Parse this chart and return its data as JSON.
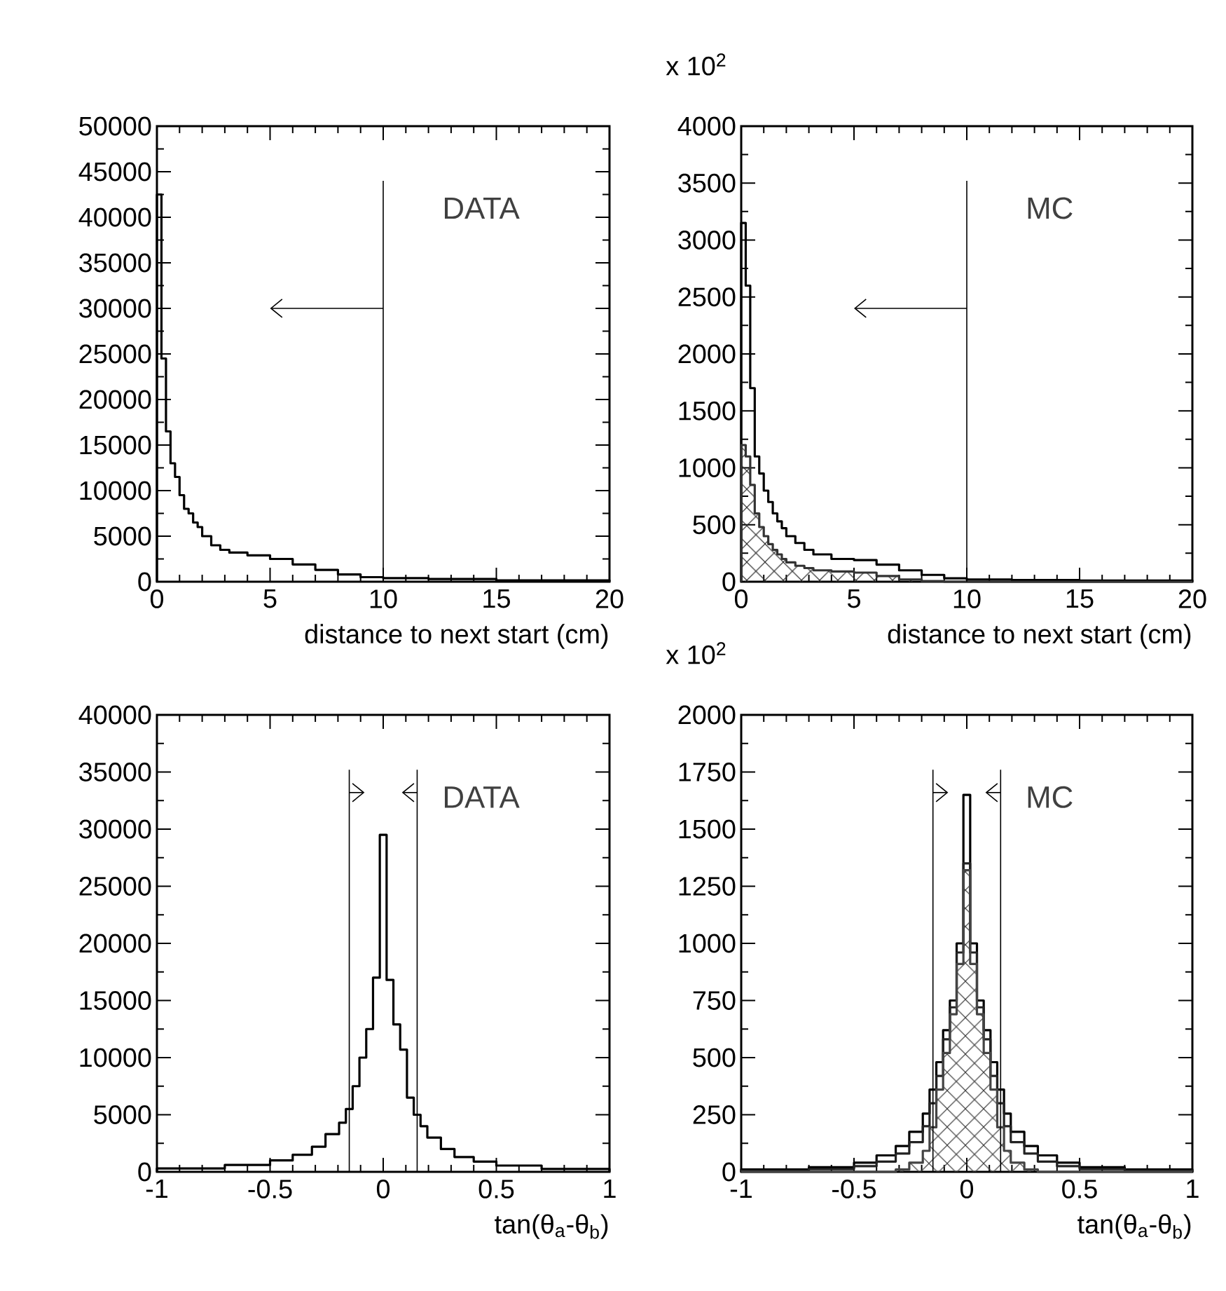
{
  "chart_data": [
    {
      "type": "histogram",
      "bins": [
        0,
        0.2,
        0.4,
        0.6,
        0.8,
        1.0,
        1.2,
        1.4,
        1.6,
        1.8,
        2,
        2.4,
        2.8,
        3.2,
        4,
        5,
        6,
        7,
        8,
        9,
        10,
        12,
        15,
        20
      ],
      "values": [
        42500,
        24500,
        16500,
        13000,
        11500,
        9500,
        8000,
        7500,
        6500,
        6000,
        5000,
        4000,
        3500,
        3200,
        2900,
        2500,
        1900,
        1300,
        800,
        500,
        400,
        300,
        150
      ],
      "color": "#000000",
      "xlim": [
        0,
        20
      ],
      "ylim": [
        0,
        50000
      ],
      "xticks": [
        0,
        5,
        10,
        15,
        20
      ],
      "yticks": [
        0,
        5000,
        10000,
        15000,
        20000,
        25000,
        30000,
        35000,
        40000,
        45000,
        50000
      ],
      "xlabel": "distance to next start (cm)",
      "annotations": [
        "DATA"
      ],
      "ref_lines": [
        {
          "axis": "x",
          "value": 10
        }
      ]
    },
    {
      "type": "histogram",
      "bins": [
        0,
        0.2,
        0.4,
        0.6,
        0.8,
        1.0,
        1.2,
        1.4,
        1.6,
        1.8,
        2,
        2.4,
        2.8,
        3.2,
        4,
        5,
        6,
        7,
        8,
        9,
        10,
        12,
        15,
        20
      ],
      "series": [
        {
          "color": "#000000",
          "values": [
            3150,
            2600,
            1700,
            1100,
            950,
            800,
            700,
            600,
            530,
            470,
            400,
            340,
            280,
            240,
            200,
            190,
            150,
            100,
            60,
            30,
            20,
            15,
            10
          ]
        },
        {
          "color": "#333333",
          "values": [
            1200,
            1100,
            850,
            600,
            480,
            400,
            330,
            280,
            240,
            200,
            170,
            140,
            120,
            100,
            90,
            80,
            50,
            20,
            5,
            0,
            0,
            0,
            0
          ]
        }
      ],
      "xlim": [
        0,
        20
      ],
      "ylim": [
        0,
        4000
      ],
      "xticks": [
        0,
        5,
        10,
        15,
        20
      ],
      "yticks": [
        0,
        500,
        1000,
        1500,
        2000,
        2500,
        3000,
        3500,
        4000
      ],
      "xlabel": "distance to next start (cm)",
      "annotations": [
        "MC",
        "x 10$^{2}$"
      ],
      "ref_lines": [
        {
          "axis": "x",
          "value": 10
        }
      ]
    },
    {
      "type": "histogram",
      "bins": [
        -1,
        -0.7,
        -0.5,
        -0.4,
        -0.315,
        -0.255,
        -0.195,
        -0.165,
        -0.135,
        -0.105,
        -0.075,
        -0.045,
        -0.015,
        0.015,
        0.045,
        0.075,
        0.105,
        0.135,
        0.165,
        0.195,
        0.255,
        0.315,
        0.4,
        0.5,
        0.7,
        1
      ],
      "values": [
        300,
        600,
        1000,
        1500,
        2200,
        3300,
        4300,
        5500,
        7500,
        10000,
        12500,
        17000,
        29500,
        16800,
        12900,
        10700,
        6500,
        5000,
        4000,
        3000,
        2000,
        1300,
        900,
        550,
        250
      ],
      "color": "#000000",
      "xlim": [
        -1,
        1
      ],
      "ylim": [
        0,
        40000
      ],
      "xticks": [
        -1,
        -0.5,
        0,
        0.5,
        1
      ],
      "yticks": [
        0,
        5000,
        10000,
        15000,
        20000,
        25000,
        30000,
        35000,
        40000
      ],
      "xlabel": "tan(θ$_{a}$-θ$_{b}$)",
      "annotations": [
        "DATA"
      ],
      "ref_lines": [
        {
          "axis": "x",
          "value": -0.15
        },
        {
          "axis": "x",
          "value": 0.15
        }
      ]
    },
    {
      "type": "histogram",
      "bins": [
        -1,
        -0.7,
        -0.5,
        -0.4,
        -0.315,
        -0.255,
        -0.195,
        -0.165,
        -0.135,
        -0.105,
        -0.075,
        -0.045,
        -0.015,
        0.015,
        0.045,
        0.075,
        0.105,
        0.135,
        0.165,
        0.195,
        0.255,
        0.315,
        0.4,
        0.5,
        0.7,
        1
      ],
      "series": [
        {
          "color": "#000000",
          "values": [
            10,
            20,
            40,
            72,
            113,
            175,
            255,
            360,
            480,
            620,
            750,
            1000,
            1650,
            1000,
            750,
            620,
            480,
            360,
            255,
            175,
            113,
            72,
            40,
            20,
            10
          ]
        },
        {
          "color": "#222222",
          "values": [
            5,
            12,
            25,
            45,
            80,
            130,
            200,
            300,
            420,
            580,
            720,
            960,
            1350,
            960,
            720,
            580,
            420,
            300,
            200,
            130,
            80,
            45,
            25,
            12,
            5
          ]
        },
        {
          "color": "#444444",
          "values": [
            0,
            0,
            0,
            0,
            10,
            40,
            92,
            195,
            360,
            520,
            690,
            910,
            1320,
            910,
            690,
            520,
            360,
            195,
            92,
            40,
            10,
            0,
            0,
            0,
            0
          ]
        }
      ],
      "xlim": [
        -1,
        1
      ],
      "ylim": [
        0,
        2000
      ],
      "xticks": [
        -1,
        -0.5,
        0,
        0.5,
        1
      ],
      "yticks": [
        0,
        250,
        500,
        750,
        1000,
        1250,
        1500,
        1750,
        2000
      ],
      "xlabel": "tan(θ$_{a}$-θ$_{b}$)",
      "annotations": [
        "MC",
        "x 10$^{2}$"
      ],
      "ref_lines": [
        {
          "axis": "x",
          "value": -0.15
        },
        {
          "axis": "x",
          "value": 0.15
        }
      ]
    }
  ]
}
